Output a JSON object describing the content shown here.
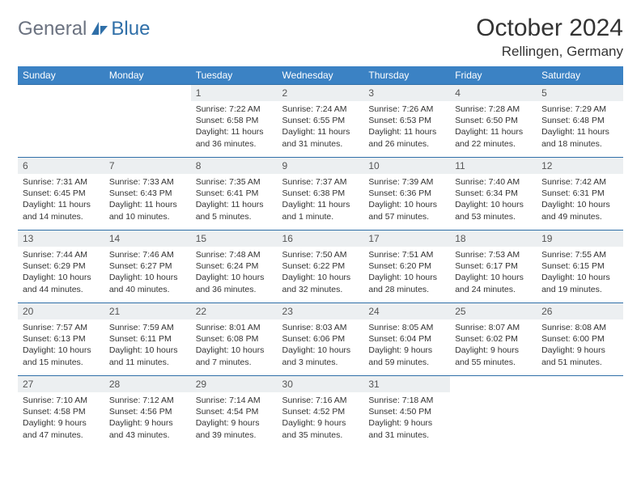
{
  "brand": {
    "part1": "General",
    "part2": "Blue"
  },
  "title": "October 2024",
  "location": "Rellingen, Germany",
  "colors": {
    "header_bg": "#3b82c4",
    "border": "#2f6fa8",
    "daynum_bg": "#eceff1",
    "text": "#333333",
    "logo_gray": "#6b7280",
    "logo_blue": "#2f6fa8"
  },
  "daysOfWeek": [
    "Sunday",
    "Monday",
    "Tuesday",
    "Wednesday",
    "Thursday",
    "Friday",
    "Saturday"
  ],
  "weeks": [
    [
      null,
      null,
      {
        "n": "1",
        "sunrise": "7:22 AM",
        "sunset": "6:58 PM",
        "daylight": "11 hours and 36 minutes."
      },
      {
        "n": "2",
        "sunrise": "7:24 AM",
        "sunset": "6:55 PM",
        "daylight": "11 hours and 31 minutes."
      },
      {
        "n": "3",
        "sunrise": "7:26 AM",
        "sunset": "6:53 PM",
        "daylight": "11 hours and 26 minutes."
      },
      {
        "n": "4",
        "sunrise": "7:28 AM",
        "sunset": "6:50 PM",
        "daylight": "11 hours and 22 minutes."
      },
      {
        "n": "5",
        "sunrise": "7:29 AM",
        "sunset": "6:48 PM",
        "daylight": "11 hours and 18 minutes."
      }
    ],
    [
      {
        "n": "6",
        "sunrise": "7:31 AM",
        "sunset": "6:45 PM",
        "daylight": "11 hours and 14 minutes."
      },
      {
        "n": "7",
        "sunrise": "7:33 AM",
        "sunset": "6:43 PM",
        "daylight": "11 hours and 10 minutes."
      },
      {
        "n": "8",
        "sunrise": "7:35 AM",
        "sunset": "6:41 PM",
        "daylight": "11 hours and 5 minutes."
      },
      {
        "n": "9",
        "sunrise": "7:37 AM",
        "sunset": "6:38 PM",
        "daylight": "11 hours and 1 minute."
      },
      {
        "n": "10",
        "sunrise": "7:39 AM",
        "sunset": "6:36 PM",
        "daylight": "10 hours and 57 minutes."
      },
      {
        "n": "11",
        "sunrise": "7:40 AM",
        "sunset": "6:34 PM",
        "daylight": "10 hours and 53 minutes."
      },
      {
        "n": "12",
        "sunrise": "7:42 AM",
        "sunset": "6:31 PM",
        "daylight": "10 hours and 49 minutes."
      }
    ],
    [
      {
        "n": "13",
        "sunrise": "7:44 AM",
        "sunset": "6:29 PM",
        "daylight": "10 hours and 44 minutes."
      },
      {
        "n": "14",
        "sunrise": "7:46 AM",
        "sunset": "6:27 PM",
        "daylight": "10 hours and 40 minutes."
      },
      {
        "n": "15",
        "sunrise": "7:48 AM",
        "sunset": "6:24 PM",
        "daylight": "10 hours and 36 minutes."
      },
      {
        "n": "16",
        "sunrise": "7:50 AM",
        "sunset": "6:22 PM",
        "daylight": "10 hours and 32 minutes."
      },
      {
        "n": "17",
        "sunrise": "7:51 AM",
        "sunset": "6:20 PM",
        "daylight": "10 hours and 28 minutes."
      },
      {
        "n": "18",
        "sunrise": "7:53 AM",
        "sunset": "6:17 PM",
        "daylight": "10 hours and 24 minutes."
      },
      {
        "n": "19",
        "sunrise": "7:55 AM",
        "sunset": "6:15 PM",
        "daylight": "10 hours and 19 minutes."
      }
    ],
    [
      {
        "n": "20",
        "sunrise": "7:57 AM",
        "sunset": "6:13 PM",
        "daylight": "10 hours and 15 minutes."
      },
      {
        "n": "21",
        "sunrise": "7:59 AM",
        "sunset": "6:11 PM",
        "daylight": "10 hours and 11 minutes."
      },
      {
        "n": "22",
        "sunrise": "8:01 AM",
        "sunset": "6:08 PM",
        "daylight": "10 hours and 7 minutes."
      },
      {
        "n": "23",
        "sunrise": "8:03 AM",
        "sunset": "6:06 PM",
        "daylight": "10 hours and 3 minutes."
      },
      {
        "n": "24",
        "sunrise": "8:05 AM",
        "sunset": "6:04 PM",
        "daylight": "9 hours and 59 minutes."
      },
      {
        "n": "25",
        "sunrise": "8:07 AM",
        "sunset": "6:02 PM",
        "daylight": "9 hours and 55 minutes."
      },
      {
        "n": "26",
        "sunrise": "8:08 AM",
        "sunset": "6:00 PM",
        "daylight": "9 hours and 51 minutes."
      }
    ],
    [
      {
        "n": "27",
        "sunrise": "7:10 AM",
        "sunset": "4:58 PM",
        "daylight": "9 hours and 47 minutes."
      },
      {
        "n": "28",
        "sunrise": "7:12 AM",
        "sunset": "4:56 PM",
        "daylight": "9 hours and 43 minutes."
      },
      {
        "n": "29",
        "sunrise": "7:14 AM",
        "sunset": "4:54 PM",
        "daylight": "9 hours and 39 minutes."
      },
      {
        "n": "30",
        "sunrise": "7:16 AM",
        "sunset": "4:52 PM",
        "daylight": "9 hours and 35 minutes."
      },
      {
        "n": "31",
        "sunrise": "7:18 AM",
        "sunset": "4:50 PM",
        "daylight": "9 hours and 31 minutes."
      },
      null,
      null
    ]
  ]
}
